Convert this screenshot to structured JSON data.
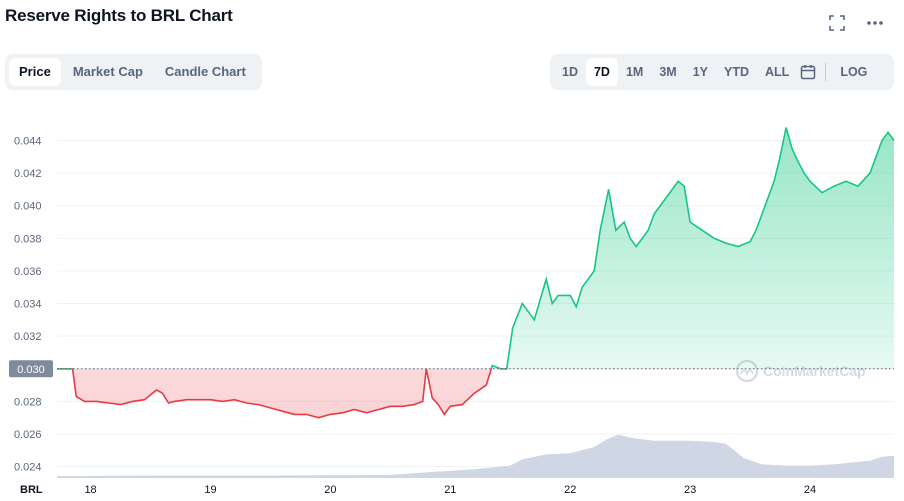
{
  "header": {
    "title": "Reserve Rights to BRL Chart",
    "icons": [
      "fullscreen-icon",
      "more-icon"
    ]
  },
  "tabs": [
    {
      "label": "Price",
      "active": true
    },
    {
      "label": "Market Cap",
      "active": false
    },
    {
      "label": "Candle Chart",
      "active": false
    }
  ],
  "ranges": [
    {
      "label": "1D",
      "active": false
    },
    {
      "label": "7D",
      "active": true
    },
    {
      "label": "1M",
      "active": false
    },
    {
      "label": "3M",
      "active": false
    },
    {
      "label": "1Y",
      "active": false
    },
    {
      "label": "YTD",
      "active": false
    },
    {
      "label": "ALL",
      "active": false
    }
  ],
  "log_label": "LOG",
  "watermark": "CoinMarketCap",
  "chart_data": {
    "type": "line",
    "currency_label": "BRL",
    "baseline": 0.03,
    "baseline_label": "0.030",
    "ylim": [
      0.0233,
      0.0463
    ],
    "xlim": [
      17.72,
      24.7
    ],
    "yticks": [
      "0.024",
      "0.026",
      "0.028",
      "0.030",
      "0.032",
      "0.034",
      "0.036",
      "0.038",
      "0.040",
      "0.042",
      "0.044"
    ],
    "xticks": [
      "18",
      "19",
      "20",
      "21",
      "22",
      "23",
      "24"
    ],
    "colors": {
      "up": "#16c784",
      "down": "#ea3943"
    },
    "series": [
      {
        "x": [
          17.72,
          17.85,
          17.88,
          17.95,
          18.05,
          18.15,
          18.25,
          18.35,
          18.45,
          18.55,
          18.6,
          18.65,
          18.7,
          18.8,
          18.9,
          19.0,
          19.1,
          19.2,
          19.3,
          19.4,
          19.5,
          19.6,
          19.7,
          19.8,
          19.9,
          20.0,
          20.1,
          20.2,
          20.3,
          20.4,
          20.5,
          20.6,
          20.7,
          20.77,
          20.8,
          20.85,
          20.9,
          20.95,
          21.0,
          21.1,
          21.2,
          21.3,
          21.35,
          21.42,
          21.47,
          21.52,
          21.6,
          21.65,
          21.7,
          21.8,
          21.85,
          21.9,
          22.0,
          22.05,
          22.1,
          22.2,
          22.25,
          22.32,
          22.38,
          22.45,
          22.5,
          22.55,
          22.6,
          22.65,
          22.7,
          22.8,
          22.9,
          22.95,
          23.0,
          23.1,
          23.2,
          23.3,
          23.4,
          23.5,
          23.55,
          23.6,
          23.7,
          23.75,
          23.8,
          23.85,
          23.9,
          23.95,
          24.0,
          24.1,
          24.2,
          24.3,
          24.4,
          24.5,
          24.55,
          24.6,
          24.65,
          24.7
        ],
        "y": [
          0.03,
          0.03,
          0.0283,
          0.028,
          0.028,
          0.0279,
          0.0278,
          0.028,
          0.0281,
          0.0287,
          0.0285,
          0.0279,
          0.028,
          0.0281,
          0.0281,
          0.0281,
          0.028,
          0.0281,
          0.0279,
          0.0278,
          0.0276,
          0.0274,
          0.0272,
          0.0272,
          0.027,
          0.0272,
          0.0273,
          0.0275,
          0.0273,
          0.0275,
          0.0277,
          0.0277,
          0.0278,
          0.028,
          0.03,
          0.0282,
          0.0278,
          0.0272,
          0.0277,
          0.0278,
          0.0285,
          0.029,
          0.0302,
          0.03,
          0.03,
          0.0325,
          0.034,
          0.0335,
          0.033,
          0.0355,
          0.034,
          0.0345,
          0.0345,
          0.0338,
          0.035,
          0.036,
          0.0385,
          0.041,
          0.0385,
          0.039,
          0.038,
          0.0375,
          0.038,
          0.0385,
          0.0395,
          0.0405,
          0.0415,
          0.0412,
          0.039,
          0.0385,
          0.038,
          0.0377,
          0.0375,
          0.0378,
          0.0385,
          0.0395,
          0.0415,
          0.043,
          0.0448,
          0.0435,
          0.0427,
          0.042,
          0.0415,
          0.0408,
          0.0412,
          0.0415,
          0.0412,
          0.042,
          0.043,
          0.044,
          0.0445,
          0.044
        ]
      }
    ],
    "volume": {
      "x": [
        17.72,
        18.5,
        19.5,
        20.5,
        20.8,
        21.2,
        21.5,
        21.6,
        21.8,
        22.0,
        22.2,
        22.3,
        22.4,
        22.5,
        22.7,
        23.0,
        23.2,
        23.3,
        23.45,
        23.6,
        23.8,
        24.0,
        24.2,
        24.5,
        24.6,
        24.7
      ],
      "v": [
        0.03,
        0.04,
        0.04,
        0.05,
        0.09,
        0.14,
        0.2,
        0.3,
        0.38,
        0.4,
        0.5,
        0.62,
        0.7,
        0.65,
        0.6,
        0.6,
        0.58,
        0.55,
        0.32,
        0.22,
        0.2,
        0.2,
        0.22,
        0.28,
        0.34,
        0.36
      ]
    }
  }
}
